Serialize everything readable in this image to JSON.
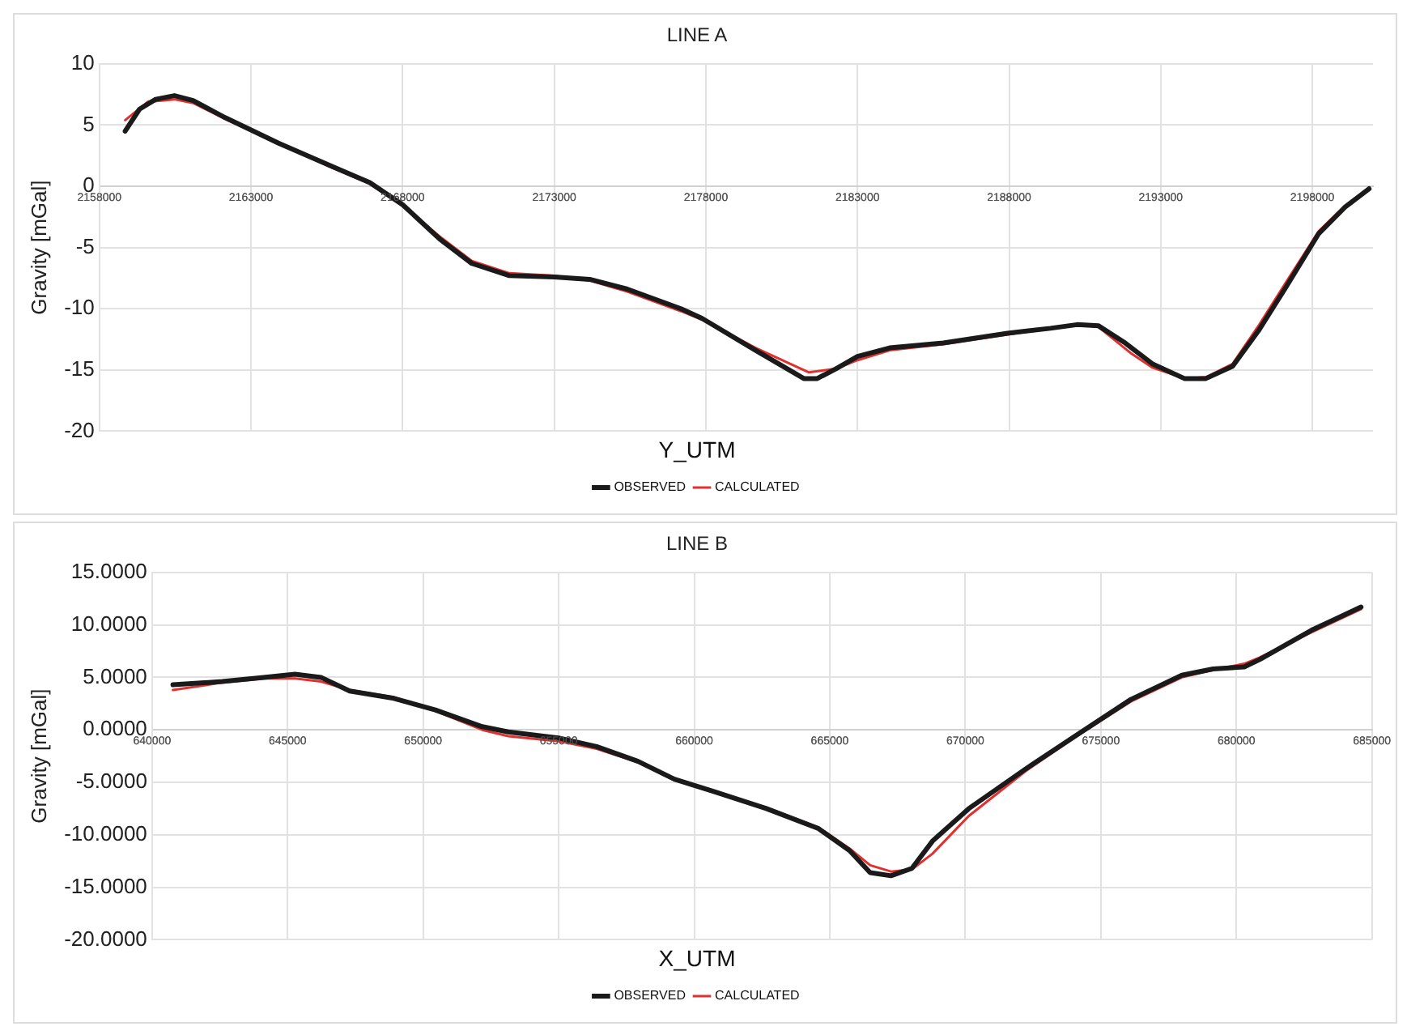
{
  "chart_data": [
    {
      "type": "line",
      "title": "LINE A",
      "xlabel": "Y_UTM",
      "ylabel": "Gravity [mGal]",
      "xlim": [
        2158000,
        2200000
      ],
      "xticks": [
        2158000,
        2163000,
        2168000,
        2173000,
        2178000,
        2183000,
        2188000,
        2193000,
        2198000
      ],
      "ylim": [
        -20,
        10
      ],
      "yticks": [
        -20,
        -15,
        -10,
        -5,
        0,
        5,
        10
      ],
      "grid": true,
      "legend": "bottom",
      "marker": "none",
      "line_style": "solid",
      "series": [
        {
          "name": "OBSERVED",
          "color": "#1a1a1a",
          "x": [
            2158850,
            2159325,
            2159855,
            2160475,
            2161090,
            2162150,
            2163920,
            2165690,
            2166920,
            2168000,
            2169220,
            2170280,
            2171520,
            2173000,
            2174170,
            2175410,
            2177180,
            2177880,
            2179640,
            2181230,
            2181675,
            2182290,
            2183000,
            2184060,
            2185830,
            2187950,
            2189360,
            2190240,
            2190950,
            2191830,
            2192720,
            2193780,
            2194490,
            2195370,
            2196250,
            2197140,
            2198200,
            2199080,
            2199870
          ],
          "values": [
            4.5,
            6.3,
            7.1,
            7.4,
            7.0,
            5.6,
            3.5,
            1.6,
            0.3,
            -1.5,
            -4.3,
            -6.3,
            -7.3,
            -7.4,
            -7.6,
            -8.4,
            -10.0,
            -10.8,
            -13.4,
            -15.7,
            -15.7,
            -14.9,
            -13.9,
            -13.2,
            -12.8,
            -12.0,
            -11.6,
            -11.3,
            -11.4,
            -12.8,
            -14.5,
            -15.7,
            -15.7,
            -14.7,
            -11.7,
            -8.2,
            -3.9,
            -1.7,
            -0.2
          ]
        },
        {
          "name": "CALCULATED",
          "color": "#e03030",
          "x": [
            2158850,
            2159600,
            2160475,
            2161090,
            2162150,
            2163920,
            2165690,
            2166920,
            2168000,
            2169220,
            2170280,
            2171520,
            2173000,
            2174170,
            2175410,
            2177180,
            2177880,
            2179640,
            2181400,
            2182290,
            2183000,
            2184060,
            2185830,
            2187950,
            2189360,
            2190240,
            2190950,
            2192000,
            2192720,
            2193800,
            2194490,
            2195370,
            2196250,
            2197140,
            2198200,
            2199080,
            2199870
          ],
          "values": [
            5.4,
            6.9,
            7.1,
            6.8,
            5.5,
            3.5,
            1.5,
            0.2,
            -1.6,
            -4.1,
            -6.1,
            -7.1,
            -7.3,
            -7.7,
            -8.6,
            -10.2,
            -10.9,
            -13.2,
            -15.2,
            -14.9,
            -14.2,
            -13.4,
            -12.9,
            -12.1,
            -11.6,
            -11.3,
            -11.5,
            -13.6,
            -14.8,
            -15.7,
            -15.6,
            -14.5,
            -11.3,
            -7.8,
            -3.7,
            -1.6,
            -0.3
          ]
        }
      ]
    },
    {
      "type": "line",
      "title": "LINE B",
      "xlabel": "X_UTM",
      "ylabel": "Gravity [mGal]",
      "xlim": [
        640000,
        685000
      ],
      "xticks": [
        640000,
        645000,
        650000,
        655000,
        660000,
        665000,
        670000,
        675000,
        680000,
        685000
      ],
      "ylim": [
        -20,
        15
      ],
      "yticks": [
        {
          "value": -20,
          "label": "-20.0000"
        },
        {
          "value": -15,
          "label": "-15.0000"
        },
        {
          "value": -10,
          "label": "-10.0000"
        },
        {
          "value": -5,
          "label": "-5.0000"
        },
        {
          "value": 0,
          "label": "0.0000"
        },
        {
          "value": 5,
          "label": "5.0000"
        },
        {
          "value": 10,
          "label": "10.0000"
        },
        {
          "value": 15,
          "label": "15.0000"
        }
      ],
      "grid": true,
      "legend": "bottom",
      "marker": "none",
      "line_style": "solid",
      "series": [
        {
          "name": "OBSERVED",
          "color": "#1a1a1a",
          "x": [
            640770,
            642590,
            644120,
            645270,
            646230,
            647290,
            648920,
            650450,
            652180,
            653140,
            655050,
            656400,
            657930,
            659270,
            660750,
            662660,
            664580,
            665730,
            666490,
            667260,
            668030,
            668790,
            670130,
            672240,
            674160,
            676110,
            677990,
            679140,
            680290,
            680860,
            682780,
            684600
          ],
          "values": [
            4.3,
            4.6,
            5.0,
            5.3,
            5.0,
            3.7,
            3.0,
            1.9,
            0.3,
            -0.2,
            -0.8,
            -1.6,
            -3.0,
            -4.7,
            -5.9,
            -7.5,
            -9.4,
            -11.5,
            -13.6,
            -13.9,
            -13.2,
            -10.6,
            -7.5,
            -3.7,
            -0.4,
            2.9,
            5.2,
            5.8,
            6.0,
            6.7,
            9.5,
            11.7
          ]
        },
        {
          "name": "CALCULATED",
          "color": "#e03030",
          "x": [
            640770,
            642590,
            644120,
            645270,
            646230,
            647290,
            648920,
            650450,
            652180,
            653140,
            655050,
            656400,
            657930,
            659270,
            660750,
            662660,
            664580,
            665730,
            666490,
            667260,
            668030,
            668790,
            670130,
            672240,
            674160,
            676110,
            677990,
            679140,
            680290,
            680860,
            682780,
            684600
          ],
          "values": [
            3.8,
            4.5,
            4.9,
            4.9,
            4.6,
            3.8,
            3.1,
            1.8,
            0.0,
            -0.6,
            -1.1,
            -1.8,
            -3.1,
            -4.8,
            -5.9,
            -7.4,
            -9.3,
            -11.3,
            -12.9,
            -13.5,
            -13.3,
            -11.8,
            -8.2,
            -3.9,
            -0.5,
            2.7,
            5.0,
            5.7,
            6.3,
            6.9,
            9.3,
            11.5
          ]
        }
      ]
    }
  ]
}
